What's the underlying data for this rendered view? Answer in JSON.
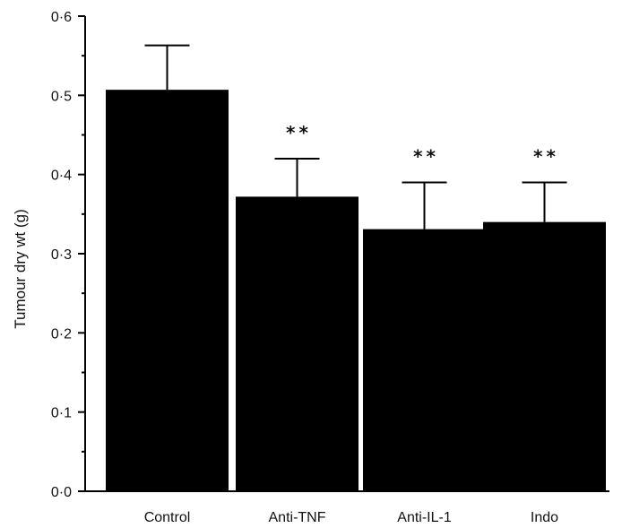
{
  "chart_data": {
    "type": "bar",
    "categories": [
      "Control",
      "Anti-TNF",
      "Anti-IL-1",
      "Indo"
    ],
    "values": [
      0.507,
      0.372,
      0.331,
      0.34
    ],
    "error_upper": [
      0.563,
      0.42,
      0.39,
      0.39
    ],
    "annotations": [
      "",
      "**",
      "**",
      "**"
    ],
    "ylabel": "Tumour dry wt (g)",
    "xlabel": "",
    "ylim": [
      0,
      0.6
    ],
    "yticks": [
      0.0,
      0.1,
      0.2,
      0.3,
      0.4,
      0.5,
      0.6
    ],
    "ytick_labels": [
      "0·0",
      "0·1",
      "0·2",
      "0·3",
      "0·4",
      "0·5",
      "0·6"
    ],
    "bar_color": "#000000",
    "grid": false,
    "legend": "none"
  }
}
